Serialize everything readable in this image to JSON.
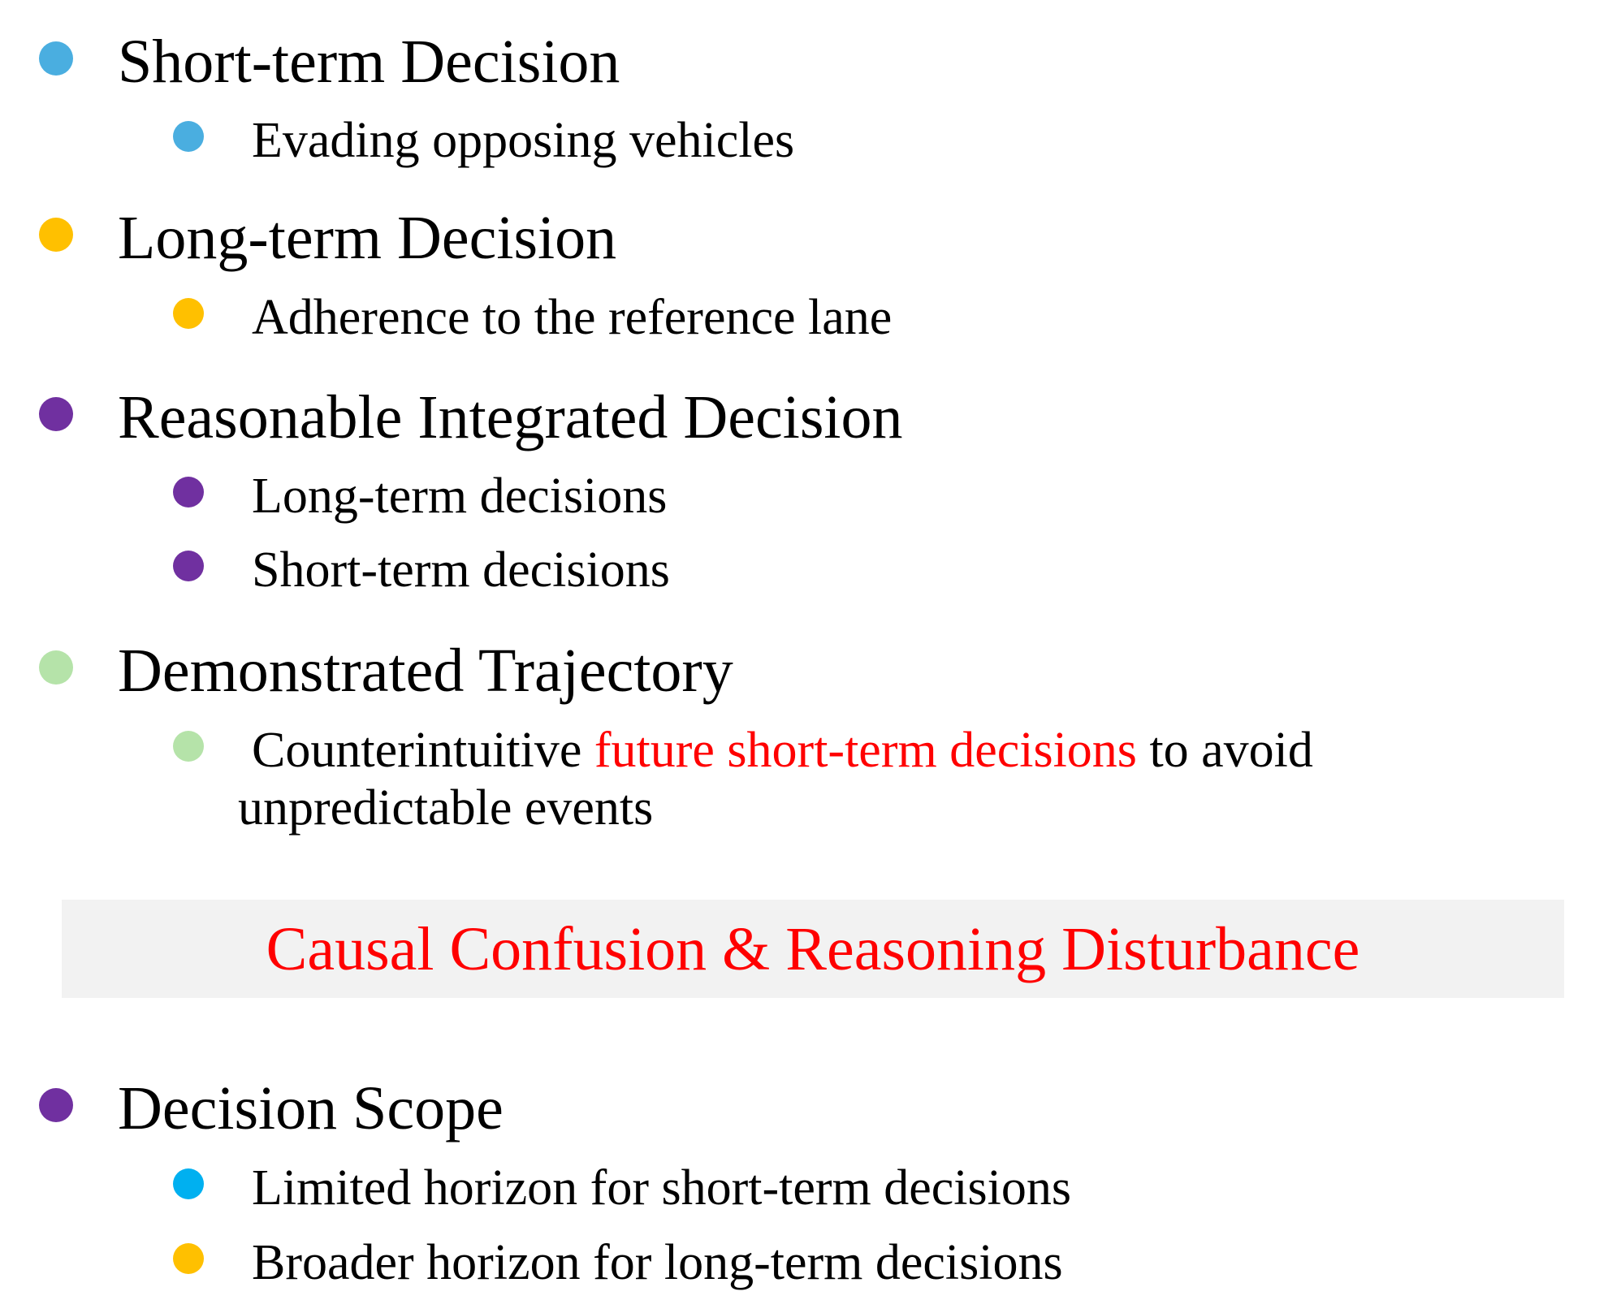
{
  "colors": {
    "blue": "#4aaee0",
    "amber": "#ffc000",
    "purple": "#7030a0",
    "light_green": "#b5e3a9",
    "cyan": "#00b0f0",
    "red": "#ff0000",
    "banner_bg": "#f2f2f2"
  },
  "sections": {
    "short_term": {
      "heading": "Short-term Decision",
      "bullet_icon": "blue-dot",
      "items": [
        "Evading opposing vehicles"
      ]
    },
    "long_term": {
      "heading": "Long-term Decision",
      "bullet_icon": "amber-dot",
      "items": [
        "Adherence to the reference lane"
      ]
    },
    "integrated": {
      "heading": "Reasonable Integrated Decision",
      "bullet_icon": "purple-dot",
      "items": [
        "Long-term decisions",
        "Short-term decisions"
      ]
    },
    "demonstrated": {
      "heading": "Demonstrated Trajectory",
      "bullet_icon": "light-green-dot",
      "item": {
        "before": "Counterintuitive ",
        "highlight": "future short-term decisions",
        "after": " to avoid",
        "line2": "unpredictable events"
      }
    },
    "banner": {
      "text": "Causal Confusion & Reasoning Disturbance"
    },
    "scope": {
      "heading": "Decision Scope",
      "bullet_icon": "purple-dot",
      "items": [
        {
          "text": "Limited horizon for short-term decisions",
          "bullet_icon": "cyan-dot"
        },
        {
          "text": "Broader horizon for long-term decisions",
          "bullet_icon": "amber-dot"
        }
      ]
    }
  }
}
